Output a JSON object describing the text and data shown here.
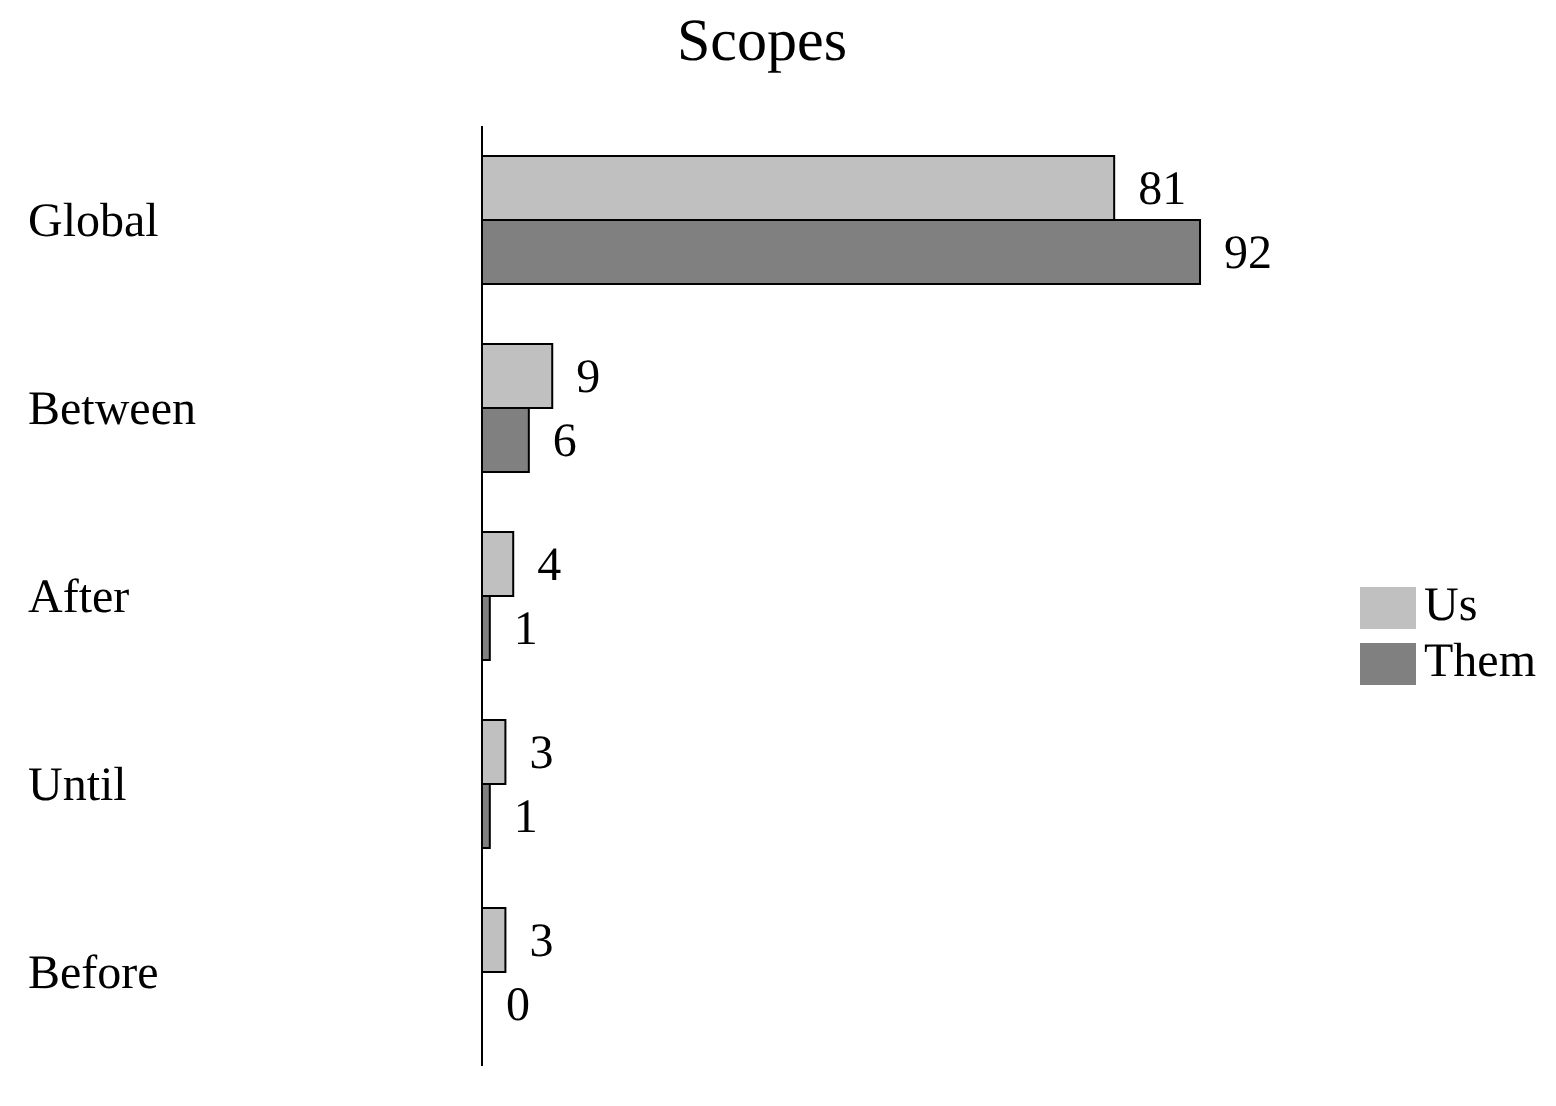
{
  "chart_data": {
    "type": "bar",
    "orientation": "horizontal",
    "title": "Scopes",
    "categories": [
      "Global",
      "Between",
      "After",
      "Until",
      "Before"
    ],
    "series": [
      {
        "name": "Us",
        "color": "#c0c0c0",
        "values": [
          81,
          9,
          4,
          3,
          3
        ]
      },
      {
        "name": "Them",
        "color": "#808080",
        "values": [
          92,
          6,
          1,
          1,
          0
        ]
      }
    ],
    "data_labels": true,
    "legend": "right"
  }
}
